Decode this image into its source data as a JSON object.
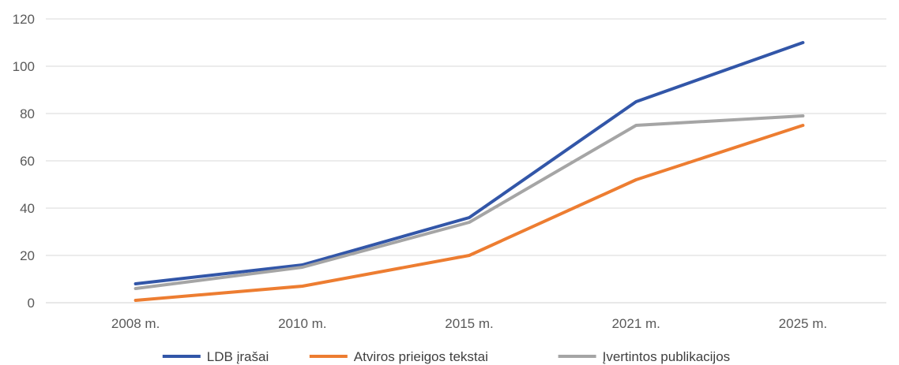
{
  "chart_data": {
    "type": "line",
    "categories": [
      "2008 m.",
      "2010 m.",
      "2015 m.",
      "2021 m.",
      "2025 m."
    ],
    "ylim": [
      0,
      120
    ],
    "yticks": [
      0,
      20,
      40,
      60,
      80,
      100,
      120
    ],
    "grid": true,
    "legend_position": "bottom",
    "series": [
      {
        "name": "LDB įrašai",
        "color": "#3256A8",
        "values": [
          8,
          16,
          36,
          85,
          110
        ]
      },
      {
        "name": "Atviros prieigos tekstai",
        "color": "#ED7D31",
        "values": [
          1,
          7,
          20,
          52,
          75
        ]
      },
      {
        "name": "Įvertintos publikacijos",
        "color": "#A5A5A5",
        "values": [
          6,
          15,
          34,
          75,
          79
        ]
      }
    ]
  }
}
